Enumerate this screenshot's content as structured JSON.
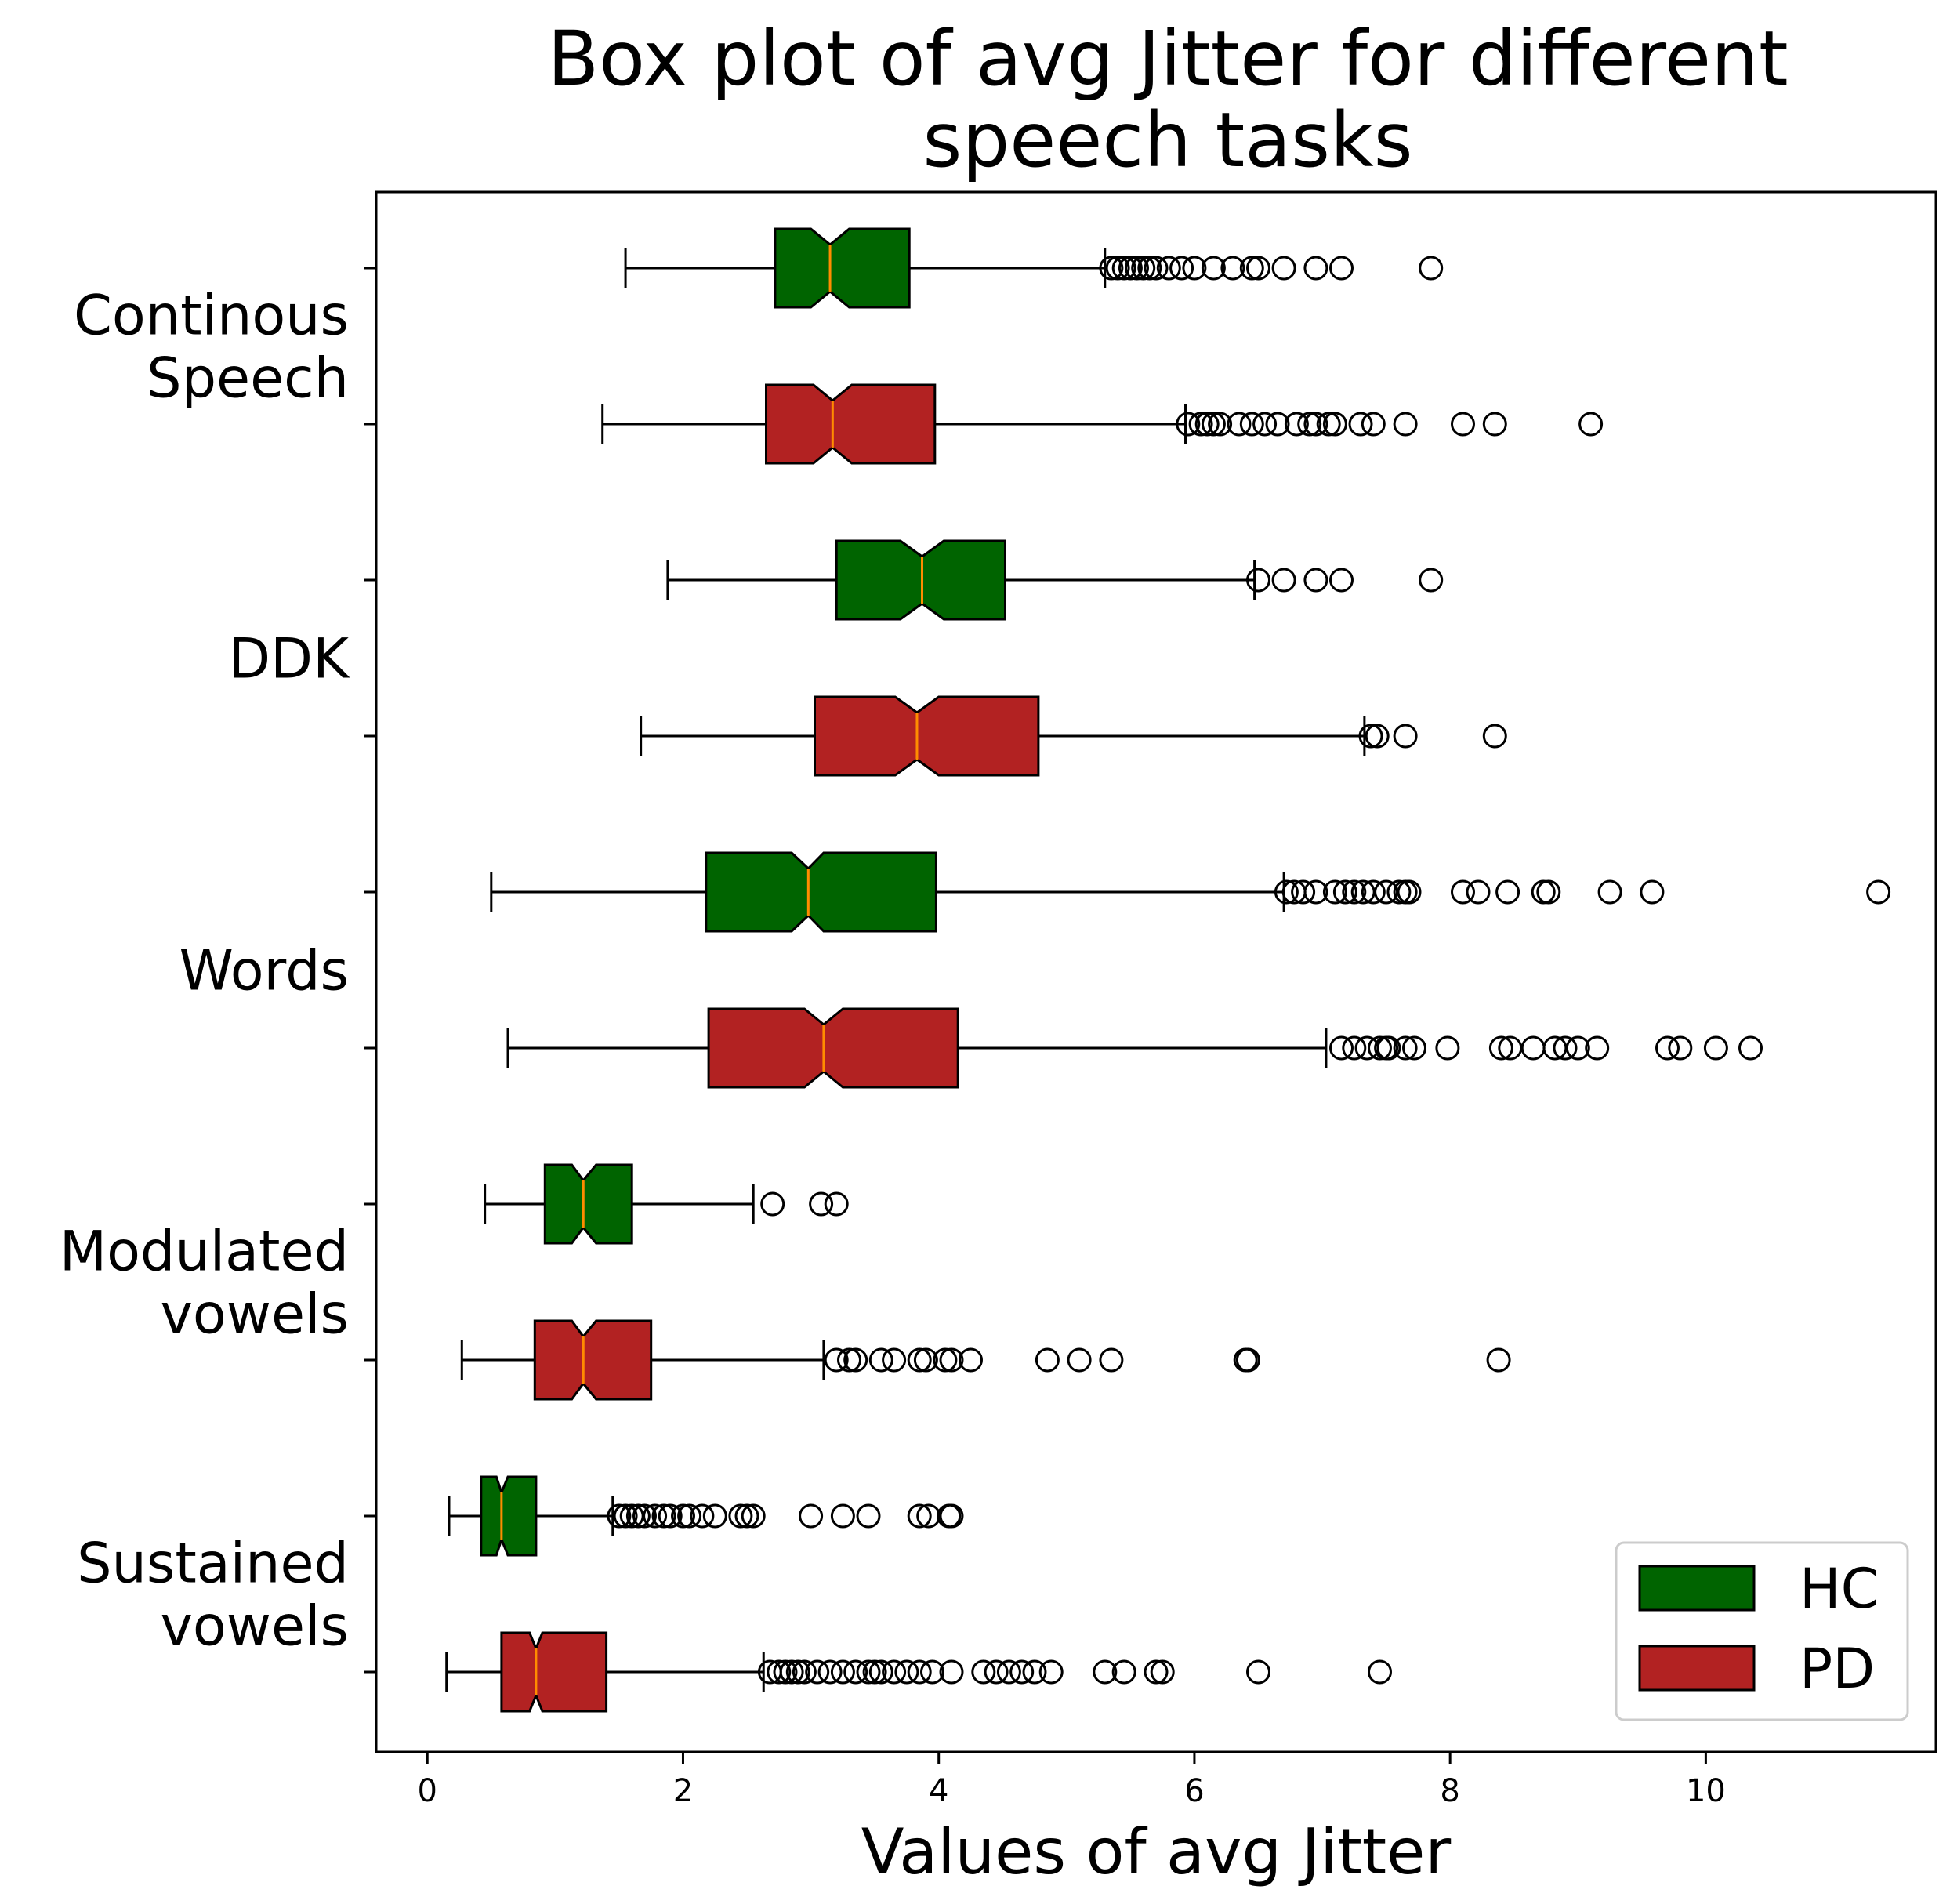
{
  "chart_data": {
    "type": "boxplot",
    "orientation": "horizontal",
    "notched": true,
    "title_lines": [
      "Box plot of avg Jitter for different",
      "speech tasks"
    ],
    "xlabel": "Values of avg Jitter",
    "xlim": [
      -0.4,
      11.8
    ],
    "xticks": [
      0,
      2,
      4,
      6,
      8,
      10
    ],
    "xtick_labels": [
      "0",
      "2",
      "4",
      "6",
      "8",
      "10"
    ],
    "categories": [
      {
        "lines": [
          "Continous",
          "Speech"
        ]
      },
      {
        "lines": [
          "DDK"
        ]
      },
      {
        "lines": [
          "Words"
        ]
      },
      {
        "lines": [
          "Modulated",
          "vowels"
        ]
      },
      {
        "lines": [
          "Sustained",
          "vowels"
        ]
      }
    ],
    "series": [
      {
        "name": "HC",
        "color": "#006400"
      },
      {
        "name": "PD",
        "color": "#b22222"
      }
    ],
    "median_color": "#ff8c00",
    "boxes": [
      {
        "category": 0,
        "series": 0,
        "whisker_low": 1.55,
        "q1": 2.72,
        "median": 3.15,
        "q3": 3.77,
        "whisker_high": 5.3,
        "notch_low": 3.0,
        "notch_high": 3.3,
        "outliers": [
          5.35,
          5.4,
          5.45,
          5.5,
          5.55,
          5.6,
          5.65,
          5.7,
          5.8,
          5.9,
          6.0,
          6.15,
          6.3,
          6.45,
          6.5,
          6.7,
          6.95,
          7.15,
          7.85
        ]
      },
      {
        "category": 0,
        "series": 1,
        "whisker_low": 1.37,
        "q1": 2.65,
        "median": 3.17,
        "q3": 3.97,
        "whisker_high": 5.93,
        "notch_low": 3.02,
        "notch_high": 3.32,
        "outliers": [
          5.95,
          6.05,
          6.1,
          6.15,
          6.2,
          6.35,
          6.45,
          6.55,
          6.65,
          6.8,
          6.9,
          6.95,
          7.05,
          7.1,
          7.3,
          7.4,
          7.65,
          8.1,
          8.35,
          9.1
        ]
      },
      {
        "category": 1,
        "series": 0,
        "whisker_low": 1.88,
        "q1": 3.2,
        "median": 3.87,
        "q3": 4.52,
        "whisker_high": 6.47,
        "notch_low": 3.7,
        "notch_high": 4.04,
        "outliers": [
          6.5,
          6.7,
          6.95,
          7.15,
          7.85
        ]
      },
      {
        "category": 1,
        "series": 1,
        "whisker_low": 1.67,
        "q1": 3.03,
        "median": 3.83,
        "q3": 4.78,
        "whisker_high": 7.33,
        "notch_low": 3.66,
        "notch_high": 4.0,
        "outliers": [
          7.38,
          7.43,
          7.65,
          8.35
        ]
      },
      {
        "category": 2,
        "series": 0,
        "whisker_low": 0.5,
        "q1": 2.18,
        "median": 2.98,
        "q3": 3.98,
        "whisker_high": 6.7,
        "notch_low": 2.85,
        "notch_high": 3.1,
        "outliers": [
          6.72,
          6.78,
          6.85,
          6.95,
          7.1,
          7.18,
          7.25,
          7.32,
          7.4,
          7.5,
          7.6,
          7.65,
          7.68,
          8.1,
          8.22,
          8.45,
          8.73,
          8.77,
          9.25,
          9.58,
          11.35
        ]
      },
      {
        "category": 2,
        "series": 1,
        "whisker_low": 0.63,
        "q1": 2.2,
        "median": 3.1,
        "q3": 4.15,
        "whisker_high": 7.03,
        "notch_low": 2.95,
        "notch_high": 3.25,
        "outliers": [
          7.15,
          7.25,
          7.35,
          7.45,
          7.5,
          7.52,
          7.65,
          7.72,
          7.98,
          8.4,
          8.47,
          8.65,
          8.82,
          8.9,
          9.0,
          9.15,
          9.7,
          9.8,
          10.08,
          10.35
        ]
      },
      {
        "category": 3,
        "series": 0,
        "whisker_low": 0.45,
        "q1": 0.92,
        "median": 1.22,
        "q3": 1.6,
        "whisker_high": 2.55,
        "notch_low": 1.13,
        "notch_high": 1.32,
        "outliers": [
          2.7,
          3.08,
          3.2
        ]
      },
      {
        "category": 3,
        "series": 1,
        "whisker_low": 0.27,
        "q1": 0.84,
        "median": 1.22,
        "q3": 1.75,
        "whisker_high": 3.1,
        "notch_low": 1.13,
        "notch_high": 1.32,
        "outliers": [
          3.2,
          3.3,
          3.35,
          3.55,
          3.65,
          3.85,
          3.9,
          4.05,
          4.1,
          4.25,
          4.85,
          5.1,
          5.35,
          6.4,
          6.42,
          8.38
        ]
      },
      {
        "category": 4,
        "series": 0,
        "whisker_low": 0.17,
        "q1": 0.42,
        "median": 0.58,
        "q3": 0.85,
        "whisker_high": 1.45,
        "notch_low": 0.54,
        "notch_high": 0.63,
        "outliers": [
          1.5,
          1.55,
          1.6,
          1.65,
          1.7,
          1.78,
          1.85,
          1.9,
          2.0,
          2.05,
          2.15,
          2.25,
          2.45,
          2.5,
          2.55,
          3.0,
          3.25,
          3.45,
          3.85,
          3.92,
          4.08,
          4.1
        ]
      },
      {
        "category": 4,
        "series": 1,
        "whisker_low": 0.15,
        "q1": 0.58,
        "median": 0.85,
        "q3": 1.4,
        "whisker_high": 2.63,
        "notch_low": 0.8,
        "notch_high": 0.9,
        "outliers": [
          2.68,
          2.75,
          2.8,
          2.85,
          2.9,
          2.95,
          3.05,
          3.15,
          3.25,
          3.35,
          3.45,
          3.5,
          3.55,
          3.65,
          3.75,
          3.85,
          3.95,
          4.1,
          4.35,
          4.45,
          4.55,
          4.65,
          4.75,
          4.88,
          5.3,
          5.45,
          5.7,
          5.75,
          6.5,
          7.45
        ]
      }
    ],
    "legend": {
      "position": "lower-right",
      "entries": [
        "HC",
        "PD"
      ]
    },
    "grid": false
  }
}
